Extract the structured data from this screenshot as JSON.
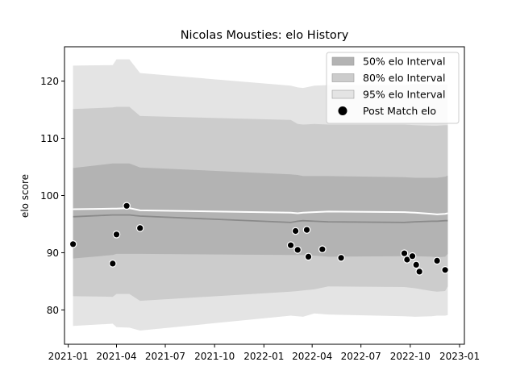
{
  "chart_data": {
    "type": "line",
    "title": "Nicolas Mousties: elo History",
    "xlabel": "",
    "ylabel": "elo score",
    "xlim": [
      "2020-12-25",
      "2023-01-10"
    ],
    "ylim": [
      74,
      126
    ],
    "x_ticks": [
      "2021-01",
      "2021-04",
      "2021-07",
      "2021-10",
      "2022-01",
      "2022-04",
      "2022-07",
      "2022-10",
      "2023-01"
    ],
    "y_ticks": [
      80,
      90,
      100,
      110,
      120
    ],
    "grid": false,
    "legend_position": "top-right",
    "legend": [
      {
        "label": "50% elo Interval",
        "kind": "patch",
        "color": "#b3b3b3"
      },
      {
        "label": "80% elo Interval",
        "kind": "patch",
        "color": "#cccccc"
      },
      {
        "label": "95% elo Interval",
        "kind": "patch",
        "color": "#e4e4e4"
      },
      {
        "label": "Post Match elo",
        "kind": "marker",
        "color": "#000000"
      }
    ],
    "bands": {
      "dates": [
        "2021-01-10",
        "2021-03-25",
        "2021-04-01",
        "2021-04-25",
        "2021-05-15",
        "2022-02-20",
        "2022-03-05",
        "2022-03-15",
        "2022-04-05",
        "2022-05-01",
        "2022-09-20",
        "2022-10-10",
        "2022-11-10",
        "2022-11-20",
        "2022-12-05",
        "2022-12-10"
      ],
      "mean": [
        96.3,
        96.6,
        96.6,
        96.6,
        96.4,
        95.3,
        95.5,
        95.6,
        95.5,
        95.4,
        95.3,
        95.4,
        95.5,
        95.5,
        95.6,
        95.6
      ],
      "median": [
        97.6,
        97.7,
        97.7,
        97.8,
        97.4,
        97.0,
        96.9,
        97.0,
        97.1,
        97.2,
        97.1,
        97.0,
        96.8,
        96.7,
        96.8,
        96.9
      ],
      "p50": [
        [
          89.0,
          104.8
        ],
        [
          89.6,
          105.6
        ],
        [
          89.8,
          105.6
        ],
        [
          89.8,
          105.6
        ],
        [
          89.8,
          104.9
        ],
        [
          89.6,
          103.7
        ],
        [
          89.6,
          103.6
        ],
        [
          89.6,
          103.4
        ],
        [
          89.5,
          103.4
        ],
        [
          89.3,
          103.4
        ],
        [
          89.4,
          103.2
        ],
        [
          89.4,
          103.1
        ],
        [
          89.3,
          103.1
        ],
        [
          89.2,
          103.1
        ],
        [
          89.3,
          103.3
        ],
        [
          89.8,
          103.5
        ]
      ],
      "p80": [
        [
          82.4,
          115.1
        ],
        [
          82.3,
          115.4
        ],
        [
          82.8,
          115.5
        ],
        [
          82.8,
          115.5
        ],
        [
          81.6,
          113.9
        ],
        [
          83.2,
          113.2
        ],
        [
          83.3,
          112.5
        ],
        [
          83.4,
          112.4
        ],
        [
          83.6,
          112.5
        ],
        [
          84.1,
          112.4
        ],
        [
          84.0,
          112.4
        ],
        [
          83.8,
          112.3
        ],
        [
          83.3,
          112.2
        ],
        [
          83.2,
          112.2
        ],
        [
          83.3,
          112.3
        ],
        [
          84.1,
          112.3
        ]
      ],
      "p95": [
        [
          77.2,
          122.7
        ],
        [
          77.6,
          122.8
        ],
        [
          77.0,
          123.8
        ],
        [
          76.9,
          123.8
        ],
        [
          76.4,
          121.4
        ],
        [
          79.0,
          119.2
        ],
        [
          78.9,
          118.9
        ],
        [
          78.8,
          118.8
        ],
        [
          79.4,
          119.2
        ],
        [
          79.2,
          119.3
        ],
        [
          78.9,
          119.3
        ],
        [
          78.8,
          119.5
        ],
        [
          78.9,
          119.4
        ],
        [
          79.0,
          119.3
        ],
        [
          79.0,
          119.4
        ],
        [
          79.1,
          119.4
        ]
      ]
    },
    "points": [
      {
        "x": "2021-01-10",
        "y": 91.5
      },
      {
        "x": "2021-03-25",
        "y": 88.1
      },
      {
        "x": "2021-04-01",
        "y": 93.2
      },
      {
        "x": "2021-04-20",
        "y": 98.2
      },
      {
        "x": "2021-05-15",
        "y": 94.3
      },
      {
        "x": "2022-02-20",
        "y": 91.3
      },
      {
        "x": "2022-03-01",
        "y": 93.8
      },
      {
        "x": "2022-03-05",
        "y": 90.5
      },
      {
        "x": "2022-03-22",
        "y": 94.0
      },
      {
        "x": "2022-03-25",
        "y": 89.3
      },
      {
        "x": "2022-04-20",
        "y": 90.6
      },
      {
        "x": "2022-05-25",
        "y": 89.1
      },
      {
        "x": "2022-09-20",
        "y": 89.9
      },
      {
        "x": "2022-09-25",
        "y": 88.8
      },
      {
        "x": "2022-10-05",
        "y": 89.4
      },
      {
        "x": "2022-10-12",
        "y": 87.9
      },
      {
        "x": "2022-10-18",
        "y": 86.7
      },
      {
        "x": "2022-11-20",
        "y": 88.6
      },
      {
        "x": "2022-12-05",
        "y": 87.0
      }
    ],
    "colors": {
      "p95": "#e4e4e4",
      "p80": "#cccccc",
      "p50": "#b3b3b3",
      "mean_line": "#8a8a8a",
      "median_line": "#ffffff",
      "marker_fill": "#000000",
      "marker_edge": "#ffffff"
    }
  }
}
